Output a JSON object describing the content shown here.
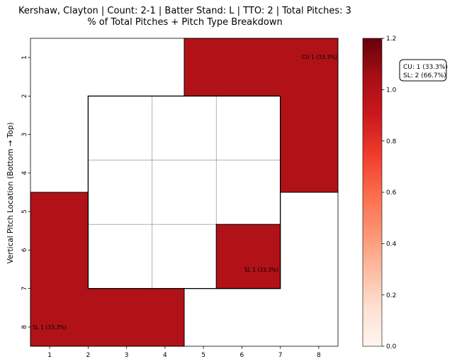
{
  "chart_data": {
    "type": "heatmap",
    "title_lines": [
      "Kershaw, Clayton | Count: 2-1 | Batter Stand: L | TTO: 2 | Total Pitches: 3",
      "% of Total Pitches + Pitch Type Breakdown"
    ],
    "xlabel": "",
    "ylabel": "Vertical Pitch Location (Bottom → Top)",
    "x_ticks": [
      "1",
      "2",
      "3",
      "4",
      "5",
      "6",
      "7",
      "8"
    ],
    "y_ticks": [
      "1",
      "2",
      "3",
      "4",
      "5",
      "6",
      "7",
      "8"
    ],
    "colormap": "Reds",
    "color_range": [
      0,
      1.2
    ],
    "colorbar_ticks": [
      "0.0",
      "0.2",
      "0.4",
      "0.6",
      "0.8",
      "1.0",
      "1.2"
    ],
    "cells": [
      {
        "id": "upper-right",
        "x_range": [
          5,
          8
        ],
        "y_range": [
          1,
          4
        ],
        "value": 1.0,
        "label": "CU 1 (33.3%)"
      },
      {
        "id": "lower-left",
        "x_range": [
          1,
          4
        ],
        "y_range": [
          5,
          8
        ],
        "value": 1.0,
        "label": "SL 1 (33.3%)"
      },
      {
        "id": "zone-bottom-right",
        "x_range": [
          6,
          7
        ],
        "y_range": [
          6,
          7
        ],
        "value": 1.0,
        "label": "SL 1 (33.3%)"
      }
    ],
    "strike_zone": {
      "x_range": [
        2,
        7
      ],
      "y_range": [
        2,
        7
      ],
      "grid": 3
    },
    "summary": [
      "CU: 1 (33.3%)",
      "SL: 2 (66.7%)"
    ],
    "colors": {
      "filled": "#b11218",
      "zone_fill": "#ffffff",
      "grid": "#808080"
    }
  }
}
